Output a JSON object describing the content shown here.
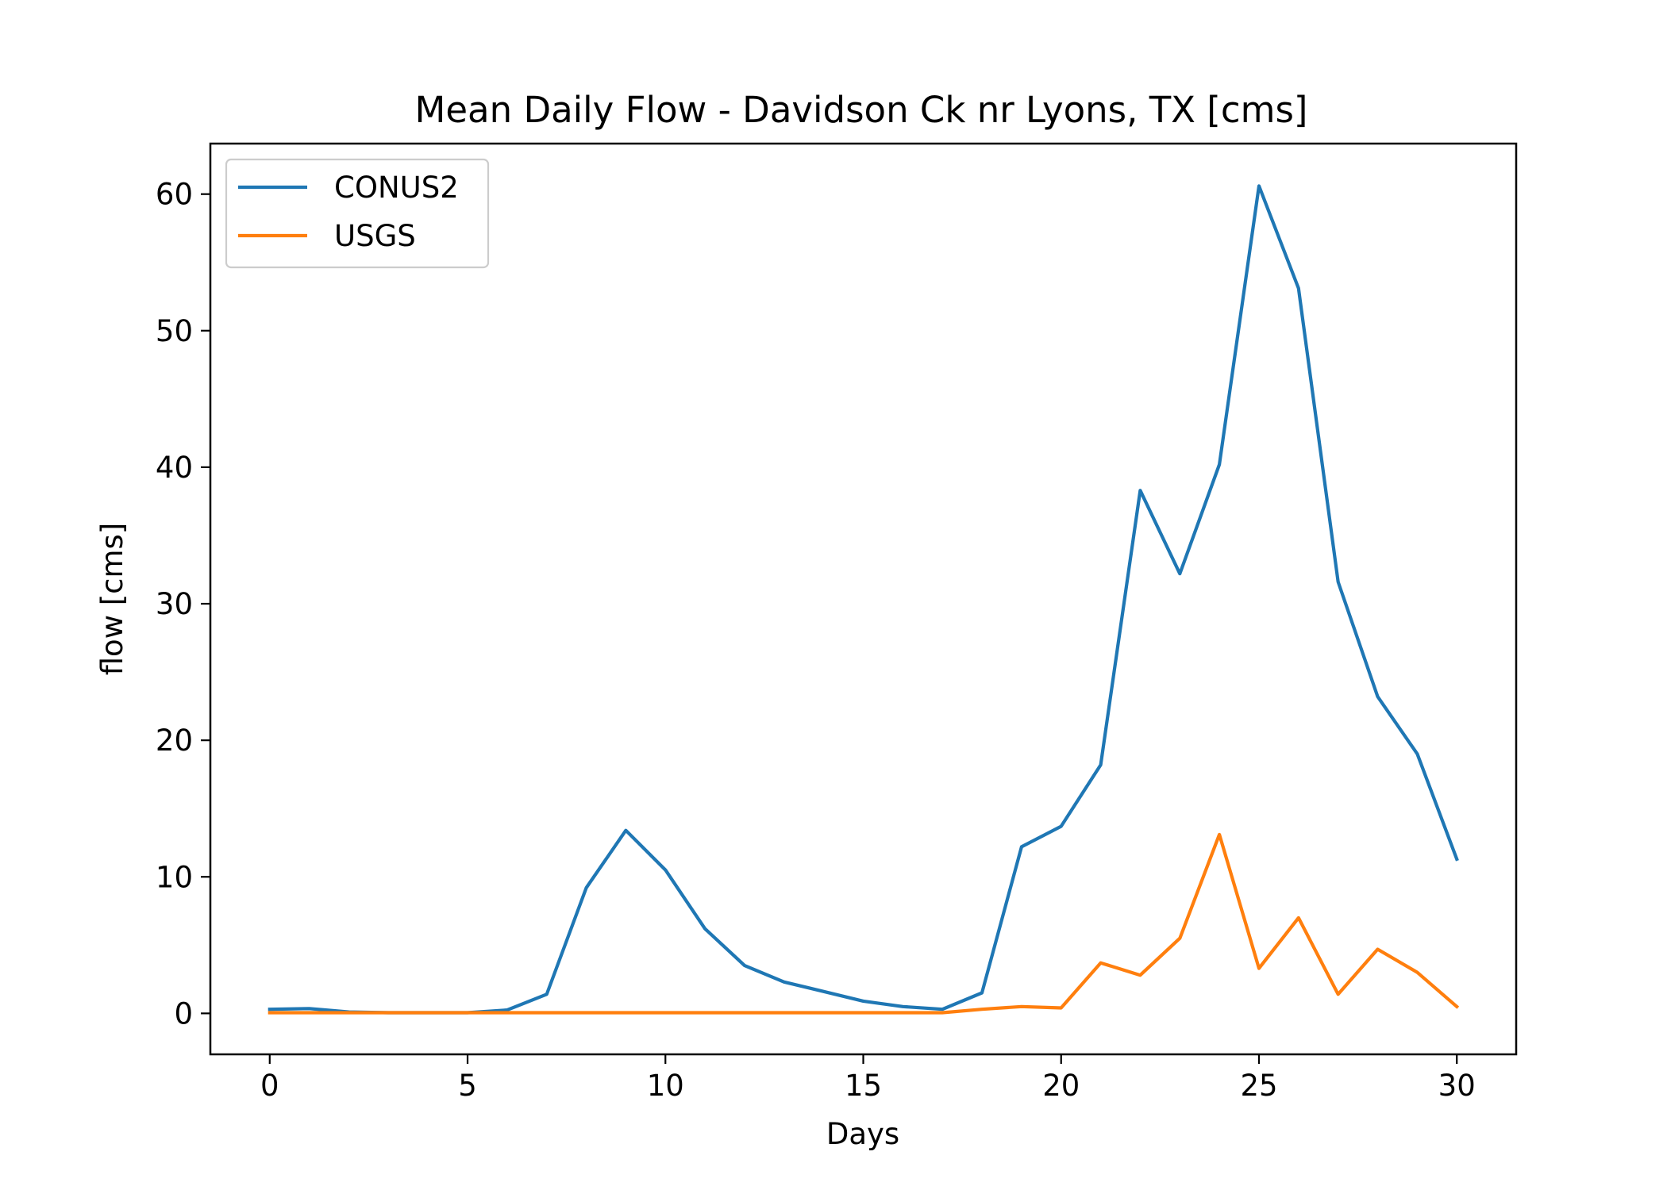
{
  "chart_data": {
    "type": "line",
    "title": "Mean Daily Flow - Davidson Ck nr Lyons, TX [cms]",
    "xlabel": "Days",
    "ylabel": "flow [cms]",
    "xlim": [
      -1.5,
      31.5
    ],
    "ylim": [
      -3,
      63.7
    ],
    "x_ticks": [
      0,
      5,
      10,
      15,
      20,
      25,
      30
    ],
    "y_ticks": [
      0,
      10,
      20,
      30,
      40,
      50,
      60
    ],
    "grid": false,
    "legend_position": "top-left",
    "x": [
      0,
      1,
      2,
      3,
      4,
      5,
      6,
      7,
      8,
      9,
      10,
      11,
      12,
      13,
      14,
      15,
      16,
      17,
      18,
      19,
      20,
      21,
      22,
      23,
      24,
      25,
      26,
      27,
      28,
      29,
      30
    ],
    "series": [
      {
        "name": "CONUS2",
        "color": "#1f77b4",
        "values": [
          0.3,
          0.35,
          0.1,
          0.05,
          0.05,
          0.05,
          0.25,
          1.4,
          9.2,
          13.4,
          10.5,
          6.2,
          3.5,
          2.3,
          1.6,
          0.9,
          0.5,
          0.3,
          1.5,
          12.2,
          13.7,
          18.2,
          38.3,
          32.2,
          40.2,
          60.6,
          53.1,
          31.6,
          23.2,
          19.0,
          11.3
        ]
      },
      {
        "name": "USGS",
        "color": "#ff7f0e",
        "values": [
          0.05,
          0.05,
          0.05,
          0.05,
          0.05,
          0.05,
          0.05,
          0.05,
          0.05,
          0.05,
          0.05,
          0.05,
          0.05,
          0.05,
          0.05,
          0.05,
          0.05,
          0.05,
          0.3,
          0.5,
          0.4,
          3.7,
          2.8,
          5.5,
          13.1,
          3.3,
          7.0,
          1.4,
          4.7,
          3.0,
          0.5
        ]
      }
    ]
  }
}
